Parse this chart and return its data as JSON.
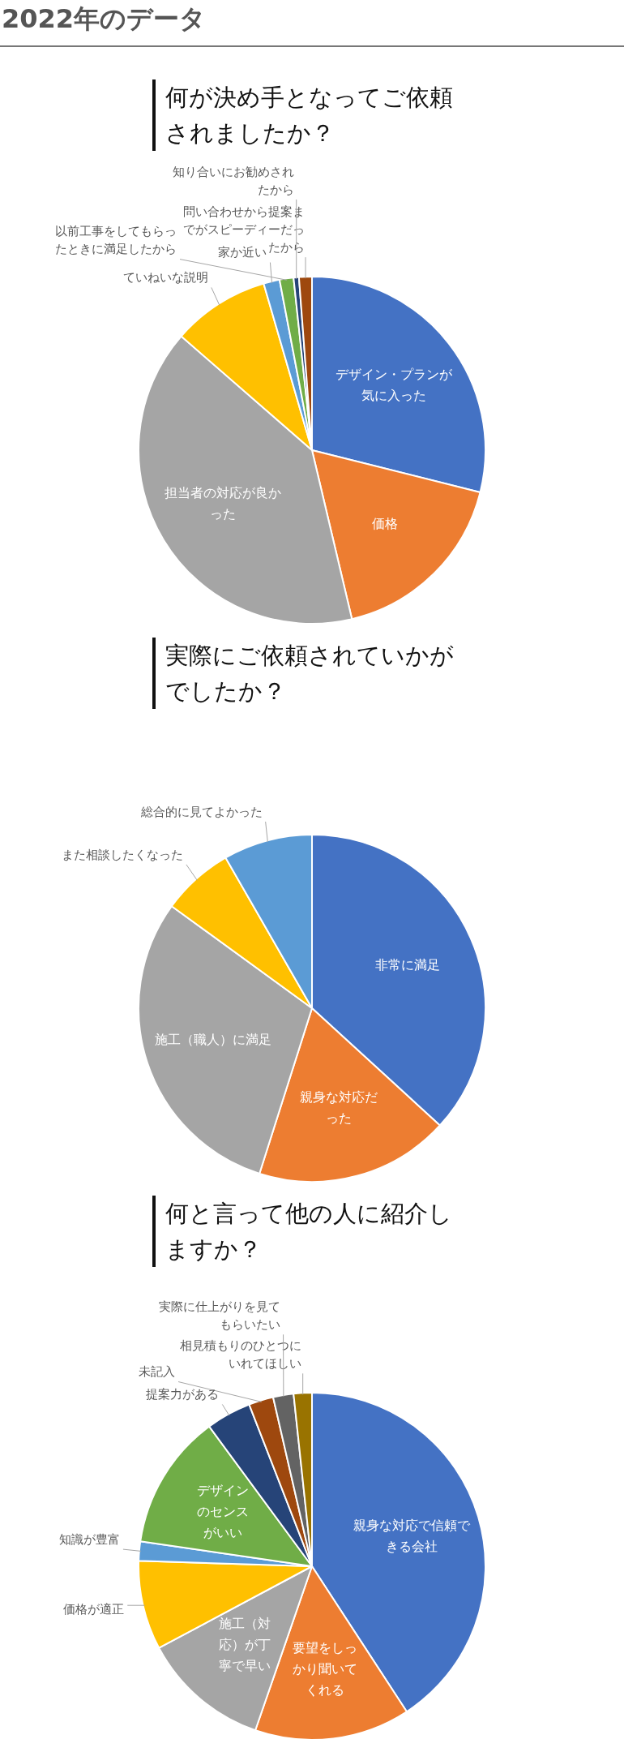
{
  "chart_data": [
    {
      "type": "pie",
      "annotations": [
        "2022年のデータ"
      ],
      "title": "何が決め手となってご依頼されましたか？",
      "categories": [
        "デザイン・プランが気に入った",
        "価格",
        "担当者の対応が良かった",
        "ていねいな説明",
        "家か近い",
        "以前工事をしてもらったときに満足したから",
        "知り合いにお勧めされたから",
        "問い合わせから提案までがスピーディーだったから"
      ],
      "values": [
        28.9,
        17.4,
        40.1,
        9.1,
        1.5,
        1.3,
        0.5,
        1.2
      ],
      "colors": [
        "#4472c4",
        "#ed7d31",
        "#a5a5a5",
        "#ffc000",
        "#5b9bd5",
        "#70ad47",
        "#264478",
        "#9e480e"
      ]
    },
    {
      "type": "pie",
      "title": "実際にご依頼されていかがでしたか？",
      "categories": [
        "非常に満足",
        "親身な対応だった",
        "施工（職人）に満足",
        "また相談したくなった",
        "総合的に見てよかった"
      ],
      "values": [
        36.8,
        18.1,
        30.1,
        6.7,
        8.3
      ],
      "colors": [
        "#4472c4",
        "#ed7d31",
        "#a5a5a5",
        "#ffc000",
        "#5b9bd5"
      ]
    },
    {
      "type": "pie",
      "title": "何と言って他の人に紹介しますか？",
      "categories": [
        "親身な対応で信頼できる会社",
        "要望をしっかり聞いてくれる",
        "施工（対応）が丁寧で早い",
        "価格が適正",
        "知識が豊富",
        "デザインのセンスがいい",
        "提案力がある",
        "未記入",
        "実際に仕上がりを見てもらいたい",
        "相見積もりのひとつにいれてほしい"
      ],
      "values": [
        40.8,
        14.5,
        11.9,
        8.3,
        1.8,
        12.6,
        4.2,
        2.3,
        1.9,
        1.7
      ],
      "colors": [
        "#4472c4",
        "#ed7d31",
        "#a5a5a5",
        "#ffc000",
        "#5b9bd5",
        "#70ad47",
        "#264478",
        "#9e480e",
        "#636363",
        "#997300"
      ]
    }
  ]
}
